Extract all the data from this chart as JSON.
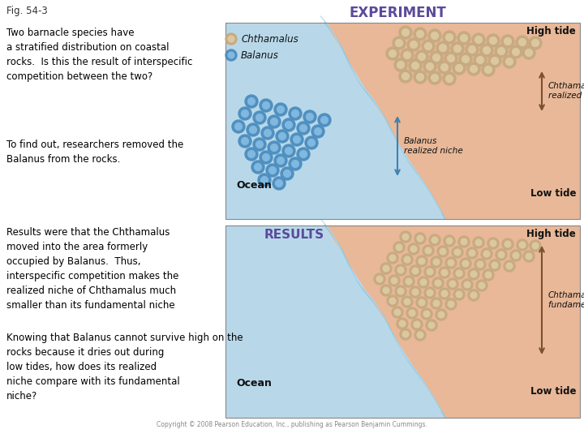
{
  "fig_label": "Fig. 54-3",
  "title": "EXPERIMENT",
  "title_color": "#5b4a9b",
  "title_fontsize": 12,
  "bg_color": "#ffffff",
  "text_color": "#000000",
  "rock_color": "#e8b898",
  "ocean_color": "#b8d8ea",
  "ocean_color2": "#cce8f4",
  "chthamalus_fill": "#c8aa80",
  "chthamalus_edge": "#907050",
  "chthamalus_inner": "#dcc8a0",
  "balanus_fill": "#5090c0",
  "balanus_edge": "#3070a0",
  "balanus_inner": "#80b8e0",
  "high_tide_label": "High tide",
  "low_tide_label": "Low tide",
  "ocean_label": "Ocean",
  "results_label": "RESULTS",
  "chthamalus_realized_label": "Chthamalus\nrealized niche",
  "balanus_realized_label": "Balanus\nrealized niche",
  "chthamalus_fundamental_label": "Chthamalus\nfundamental niche",
  "chthamalus_legend": "Chthamalus",
  "balanus_legend": "Balanus",
  "copyright": "Copyright © 2008 Pearson Education, Inc., publishing as Pearson Benjamin Cummings."
}
